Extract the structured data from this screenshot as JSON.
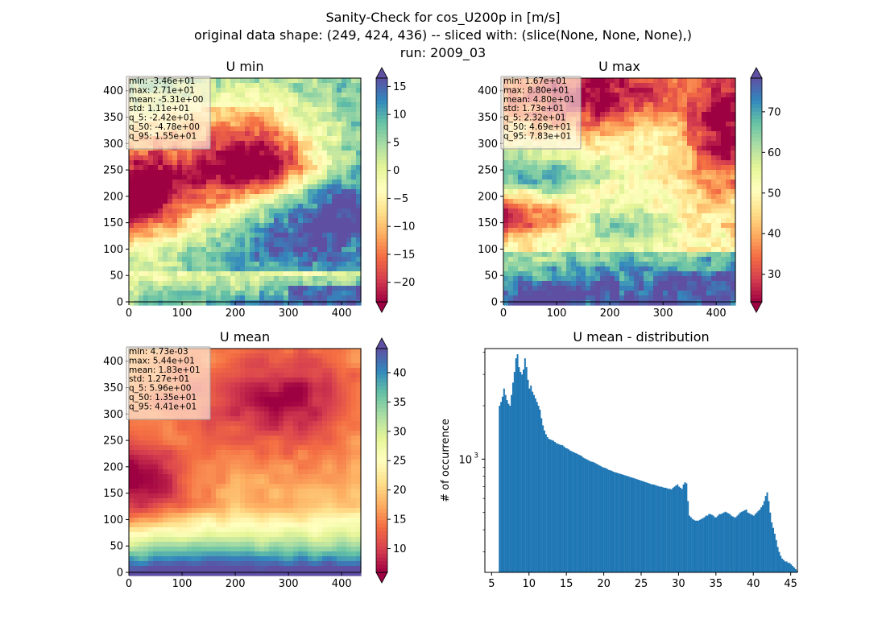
{
  "suptitle": {
    "line1": "Sanity-Check for cos_U200p in [m/s]",
    "line2": "original data shape: (249, 424, 436) -- sliced with: (slice(None, None, None),)",
    "line3": "run: 2009_03"
  },
  "colormap": "Spectral",
  "chart_data": [
    {
      "type": "heatmap",
      "title": "U min",
      "xticks": [
        "0",
        "100",
        "200",
        "300",
        "400"
      ],
      "yticks": [
        "0",
        "50",
        "100",
        "150",
        "200",
        "250",
        "300",
        "350",
        "400"
      ],
      "xlim": [
        0,
        436
      ],
      "ylim": [
        0,
        424
      ],
      "colorbar": {
        "range": [
          -23.5,
          16.5
        ],
        "ticks": [
          "15",
          "10",
          "5",
          "0",
          "−5",
          "−10",
          "−15",
          "−20"
        ],
        "tick_values": [
          15,
          10,
          5,
          0,
          -5,
          -10,
          -15,
          -20
        ]
      },
      "stats": [
        "min: -3.46e+01",
        "max: 2.71e+01",
        "mean: -5.31e+00",
        "std: 1.11e+01",
        "q_5: -2.42e+01",
        "q_50: -4.78e+00",
        "q_95: 1.55e+01"
      ]
    },
    {
      "type": "heatmap",
      "title": "U max",
      "xticks": [
        "0",
        "100",
        "200",
        "300",
        "400"
      ],
      "yticks": [
        "0",
        "50",
        "100",
        "150",
        "200",
        "250",
        "300",
        "350",
        "400"
      ],
      "xlim": [
        0,
        436
      ],
      "ylim": [
        0,
        424
      ],
      "colorbar": {
        "range": [
          23.2,
          78.3
        ],
        "ticks": [
          "70",
          "60",
          "50",
          "40",
          "30"
        ],
        "tick_values": [
          70,
          60,
          50,
          40,
          30
        ]
      },
      "stats": [
        "min: 1.67e+01",
        "max: 8.80e+01",
        "mean: 4.80e+01",
        "std: 1.73e+01",
        "q_5: 2.32e+01",
        "q_50: 4.69e+01",
        "q_95: 7.83e+01"
      ]
    },
    {
      "type": "heatmap",
      "title": "U mean",
      "xticks": [
        "0",
        "100",
        "200",
        "300",
        "400"
      ],
      "yticks": [
        "0",
        "50",
        "100",
        "150",
        "200",
        "250",
        "300",
        "350",
        "400"
      ],
      "xlim": [
        0,
        436
      ],
      "ylim": [
        0,
        424
      ],
      "colorbar": {
        "range": [
          5.96,
          44.1
        ],
        "ticks": [
          "40",
          "35",
          "30",
          "25",
          "20",
          "15",
          "10"
        ],
        "tick_values": [
          40,
          35,
          30,
          25,
          20,
          15,
          10
        ]
      },
      "stats": [
        "min: 4.73e-03",
        "max: 5.44e+01",
        "mean: 1.83e+01",
        "std: 1.27e+01",
        "q_5: 5.96e+00",
        "q_50: 1.35e+01",
        "q_95: 4.41e+01"
      ]
    },
    {
      "type": "bar",
      "title": "U mean - distribution",
      "ylabel": "# of occurrence",
      "xlabel": "",
      "yscale": "log",
      "ylim": [
        230,
        4200
      ],
      "xlim": [
        4.1,
        45.9
      ],
      "xticks": [
        5,
        10,
        15,
        20,
        25,
        30,
        35,
        40,
        45
      ],
      "yticks_major": [
        {
          "value": 1000,
          "label": "10",
          "sup": "3"
        }
      ],
      "bar_color": "#1f77b4",
      "bin_width": 0.2,
      "x_start": 5.96,
      "values": [
        2000,
        2100,
        2250,
        2500,
        2300,
        2150,
        2050,
        2000,
        2300,
        2700,
        3100,
        3700,
        3900,
        3300,
        3100,
        3000,
        3200,
        3700,
        3300,
        2800,
        2500,
        2600,
        2400,
        2300,
        2200,
        2100,
        2000,
        1900,
        1700,
        1550,
        1450,
        1380,
        1330,
        1300,
        1290,
        1280,
        1270,
        1250,
        1230,
        1220,
        1210,
        1200,
        1200,
        1180,
        1160,
        1150,
        1140,
        1120,
        1110,
        1100,
        1090,
        1080,
        1070,
        1060,
        1050,
        1040,
        1020,
        1010,
        1000,
        990,
        980,
        970,
        965,
        960,
        950,
        940,
        930,
        920,
        910,
        900,
        895,
        890,
        880,
        870,
        865,
        860,
        850,
        845,
        840,
        835,
        830,
        825,
        820,
        815,
        810,
        805,
        800,
        795,
        790,
        785,
        780,
        775,
        770,
        765,
        760,
        755,
        750,
        745,
        740,
        735,
        730,
        725,
        720,
        720,
        715,
        710,
        705,
        700,
        700,
        695,
        690,
        690,
        685,
        680,
        680,
        675,
        690,
        700,
        710,
        720,
        700,
        690,
        680,
        720,
        740,
        730,
        580,
        480,
        470,
        460,
        455,
        450,
        450,
        450,
        455,
        460,
        465,
        470,
        480,
        480,
        490,
        490,
        485,
        480,
        470,
        470,
        480,
        490,
        490,
        495,
        500,
        505,
        500,
        495,
        490,
        480,
        475,
        470,
        470,
        480,
        490,
        500,
        505,
        510,
        515,
        520,
        500,
        495,
        490,
        485,
        480,
        490,
        500,
        510,
        520,
        535,
        550,
        580,
        620,
        650,
        580,
        500,
        440,
        410,
        380,
        350,
        320,
        300,
        285,
        275,
        270,
        265,
        265,
        260,
        260,
        255,
        250,
        245,
        240,
        235
      ]
    }
  ]
}
